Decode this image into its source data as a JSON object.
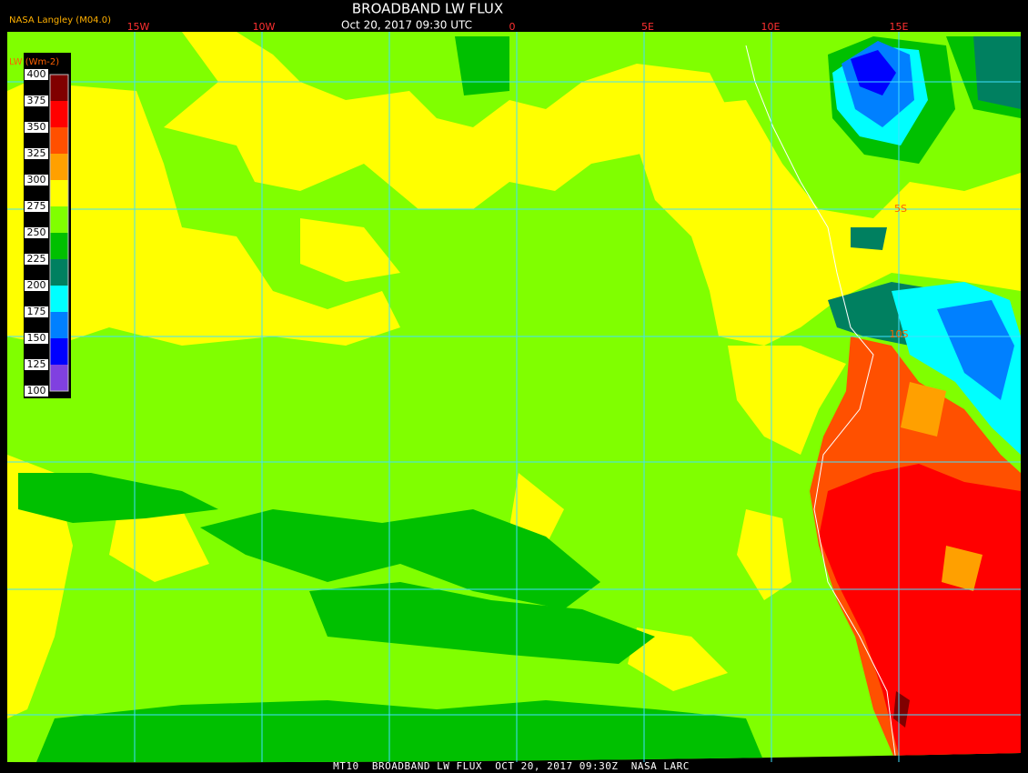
{
  "header": {
    "title": "BROADBAND LW FLUX",
    "subtitle": "Oct 20, 2017 09:30 UTC",
    "source": "NASA Langley (M04.0)"
  },
  "longitude_labels": [
    "15W",
    "10W",
    "0",
    "5E",
    "10E",
    "15E"
  ],
  "latitude_labels": [
    "5S",
    "10S"
  ],
  "colorbar": {
    "label": "LW (Wm-2)",
    "ticks": [
      400,
      375,
      350,
      325,
      300,
      275,
      250,
      225,
      200,
      175,
      150,
      125,
      100
    ],
    "colors": [
      "#800000",
      "#ff0000",
      "#ff5000",
      "#ffa000",
      "#ffff00",
      "#80ff00",
      "#00c000",
      "#008060",
      "#00ffff",
      "#0080ff",
      "#0000ff",
      "#8040e0"
    ]
  },
  "footer": "MT10  BROADBAND LW FLUX  OCT 20, 2017 09:30Z  NASA LARC"
}
